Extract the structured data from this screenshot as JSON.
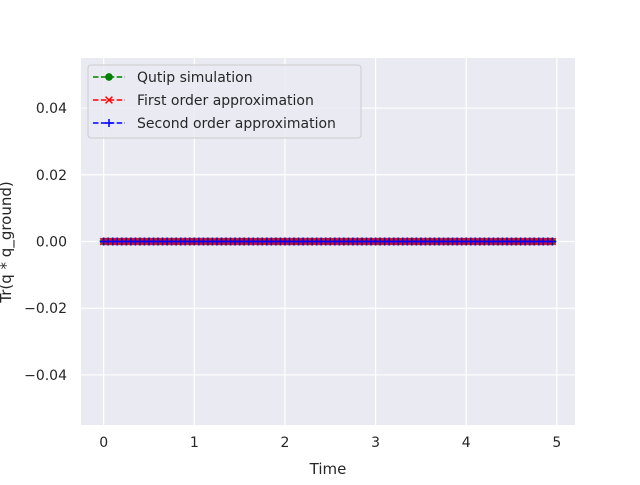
{
  "chart_data": {
    "type": "line",
    "title": "",
    "xlabel": "Time",
    "ylabel": "Tr(q * q_ground)",
    "xlim": [
      -0.25,
      5.2
    ],
    "ylim": [
      -0.055,
      0.055
    ],
    "xticks": [
      0,
      1,
      2,
      3,
      4,
      5
    ],
    "xtick_labels": [
      "0",
      "1",
      "2",
      "3",
      "4",
      "5"
    ],
    "yticks": [
      -0.04,
      -0.02,
      0.0,
      0.02,
      0.04
    ],
    "ytick_labels": [
      "−0.04",
      "−0.02",
      "0.00",
      "0.02",
      "0.04"
    ],
    "grid": true,
    "legend_position": "top-left",
    "x": {
      "start": 0,
      "step": 0.05,
      "count": 100
    },
    "series": [
      {
        "name": "Qutip simulation",
        "color": "#008000",
        "marker": "circle",
        "linestyle": "dashed",
        "value": 0.0
      },
      {
        "name": "First order approximation",
        "color": "#ff0000",
        "marker": "x",
        "linestyle": "dashed",
        "value": 0.0
      },
      {
        "name": "Second order approximation",
        "color": "#0000ff",
        "marker": "plus",
        "linestyle": "dashed",
        "value": 0.0
      }
    ]
  }
}
